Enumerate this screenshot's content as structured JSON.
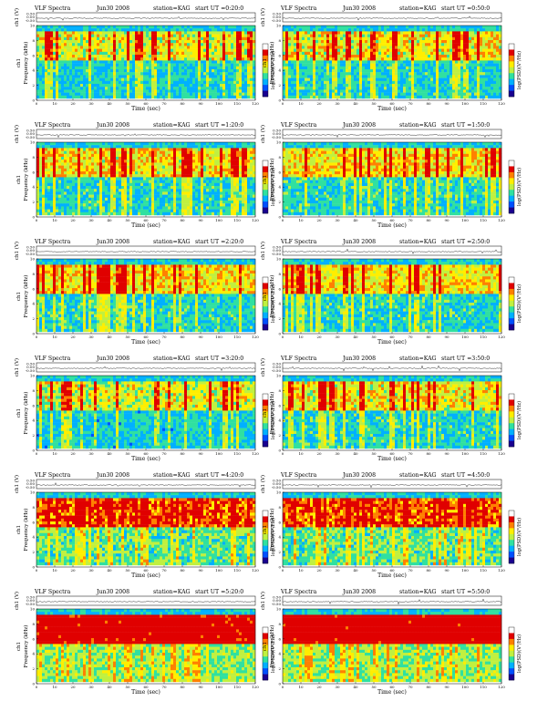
{
  "chart_data": {
    "type": "heatmap",
    "panels": [
      {
        "title": "VLF Spectra",
        "date": "Jun30 2008",
        "station": "station=KAG",
        "start": "start UT =0:20:0",
        "intensity": 0.3
      },
      {
        "title": "VLF Spectra",
        "date": "Jun30 2008",
        "station": "station=KAG",
        "start": "start UT =0:50:0",
        "intensity": 0.32
      },
      {
        "title": "VLF Spectra",
        "date": "Jun30 2008",
        "station": "station=KAG",
        "start": "start UT =1:20:0",
        "intensity": 0.34
      },
      {
        "title": "VLF Spectra",
        "date": "Jun30 2008",
        "station": "station=KAG",
        "start": "start UT =1:50:0",
        "intensity": 0.36
      },
      {
        "title": "VLF Spectra",
        "date": "Jun30 2008",
        "station": "station=KAG",
        "start": "start UT =2:20:0",
        "intensity": 0.35
      },
      {
        "title": "VLF Spectra",
        "date": "Jun30 2008",
        "station": "station=KAG",
        "start": "start UT =2:50:0",
        "intensity": 0.35
      },
      {
        "title": "VLF Spectra",
        "date": "Jun30 2008",
        "station": "station=KAG",
        "start": "start UT =3:20:0",
        "intensity": 0.28
      },
      {
        "title": "VLF Spectra",
        "date": "Jun30 2008",
        "station": "station=KAG",
        "start": "start UT =3:50:0",
        "intensity": 0.33
      },
      {
        "title": "VLF Spectra",
        "date": "Jun30 2008",
        "station": "station=KAG",
        "start": "start UT =4:20:0",
        "intensity": 0.55
      },
      {
        "title": "VLF Spectra",
        "date": "Jun30 2008",
        "station": "station=KAG",
        "start": "start UT =4:50:0",
        "intensity": 0.55
      },
      {
        "title": "VLF Spectra",
        "date": "Jun30 2008",
        "station": "station=KAG",
        "start": "start UT =5:20:0",
        "intensity": 0.7
      },
      {
        "title": "VLF Spectra",
        "date": "Jun30 2008",
        "station": "station=KAG",
        "start": "start UT =5:50:0",
        "intensity": 0.72
      }
    ],
    "x_axis": {
      "label": "Time (sec)",
      "range": [
        0,
        120
      ],
      "ticks": [
        0,
        10,
        20,
        30,
        40,
        50,
        60,
        70,
        80,
        90,
        100,
        110,
        120
      ]
    },
    "y_axis": {
      "label": "Frequency (kHz)",
      "range": [
        0,
        10
      ],
      "ticks": [
        0,
        2,
        4,
        6,
        8,
        10
      ]
    },
    "ch_axis": {
      "label": "ch1 (V)",
      "ticks": [
        "0.50",
        "0.00",
        "-0.50"
      ]
    },
    "ch_name": "ch1",
    "colorbar": {
      "label": "log(PSD)(V²/Hz)",
      "colors": [
        "#1a0090",
        "#0050ff",
        "#00b0ff",
        "#30e0a0",
        "#c0f040",
        "#ffee00",
        "#ff8000",
        "#e00000",
        "#ffffff"
      ]
    }
  }
}
